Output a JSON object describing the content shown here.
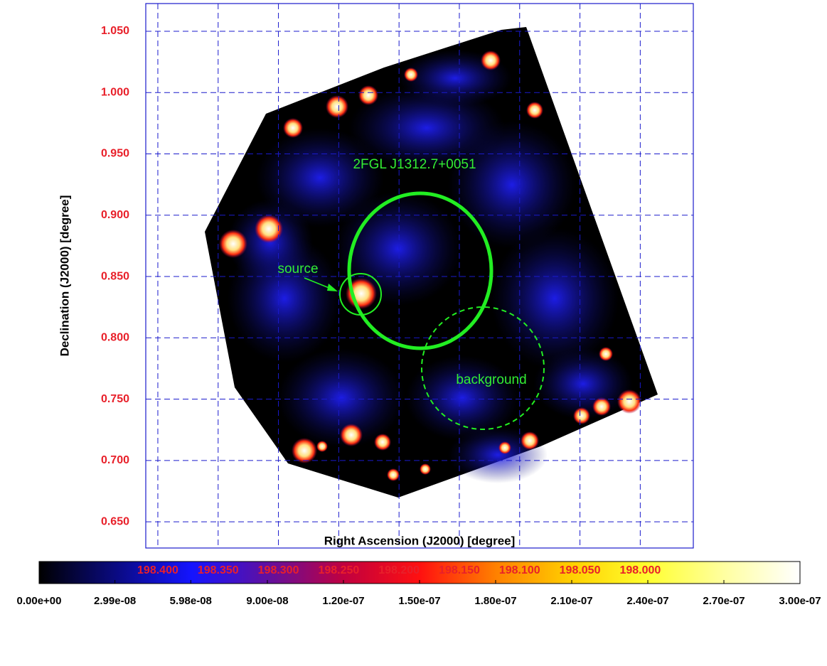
{
  "chart_data": {
    "type": "image",
    "xlabel": "Right Ascension (J2000) [degree]",
    "ylabel": "Declination (J2000) [degree]",
    "xlim": [
      198.41,
      197.956
    ],
    "ylim": [
      0.6286,
      1.0726
    ],
    "xticks": [
      {
        "value": 198.4,
        "label": "198.400"
      },
      {
        "value": 198.35,
        "label": "198.350"
      },
      {
        "value": 198.3,
        "label": "198.300"
      },
      {
        "value": 198.25,
        "label": "198.250"
      },
      {
        "value": 198.2,
        "label": "198.200"
      },
      {
        "value": 198.15,
        "label": "198.150"
      },
      {
        "value": 198.1,
        "label": "198.100"
      },
      {
        "value": 198.05,
        "label": "198.050"
      },
      {
        "value": 198.0,
        "label": "198.000"
      }
    ],
    "yticks": [
      {
        "value": 1.05,
        "label": "1.050"
      },
      {
        "value": 1.0,
        "label": "1.000"
      },
      {
        "value": 0.95,
        "label": "0.950"
      },
      {
        "value": 0.9,
        "label": "0.900"
      },
      {
        "value": 0.85,
        "label": "0.850"
      },
      {
        "value": 0.8,
        "label": "0.800"
      },
      {
        "value": 0.75,
        "label": "0.750"
      },
      {
        "value": 0.7,
        "label": "0.700"
      },
      {
        "value": 0.65,
        "label": "0.650"
      }
    ],
    "grid": true,
    "grid_color": "#1a1acc",
    "tick_label_color": "#e8202a",
    "annotations": [
      "2FGL J1312.7+0051",
      "source",
      "background"
    ],
    "colorbar": {
      "lim": [
        0,
        3e-07
      ],
      "colormap": [
        "#000000",
        "#0a0a80",
        "#1414ff",
        "#6010a0",
        "#c00040",
        "#ff1010",
        "#ff8000",
        "#ffd000",
        "#ffff30",
        "#ffffa0",
        "#ffffff"
      ],
      "ticks": [
        {
          "value": 0,
          "label": "0.00e+00"
        },
        {
          "value": 2.99e-08,
          "label": "2.99e-08"
        },
        {
          "value": 5.98e-08,
          "label": "5.98e-08"
        },
        {
          "value": 9e-08,
          "label": "9.00e-08"
        },
        {
          "value": 1.2e-07,
          "label": "1.20e-07"
        },
        {
          "value": 1.5e-07,
          "label": "1.50e-07"
        },
        {
          "value": 1.8e-07,
          "label": "1.80e-07"
        },
        {
          "value": 2.1e-07,
          "label": "2.10e-07"
        },
        {
          "value": 2.4e-07,
          "label": "2.40e-07"
        },
        {
          "value": 2.7e-07,
          "label": "2.70e-07"
        },
        {
          "value": 3e-07,
          "label": "3.00e-07"
        }
      ]
    }
  }
}
